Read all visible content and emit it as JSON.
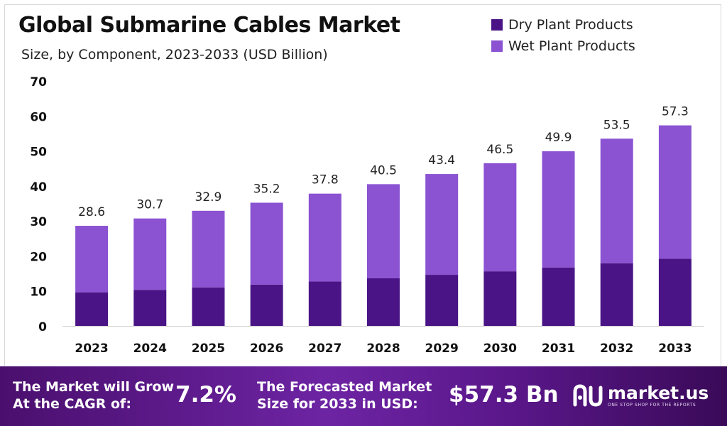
{
  "chart_data": {
    "type": "bar",
    "stacked": true,
    "title": "Global Submarine Cables Market",
    "subtitle": "Size, by Component, 2023-2033 (USD Billion)",
    "categories": [
      "2023",
      "2024",
      "2025",
      "2026",
      "2027",
      "2028",
      "2029",
      "2030",
      "2031",
      "2032",
      "2033"
    ],
    "series": [
      {
        "name": "Dry Plant Products",
        "color": "#4a1486",
        "values": [
          9.6,
          10.3,
          11.0,
          11.8,
          12.7,
          13.6,
          14.6,
          15.6,
          16.7,
          17.9,
          19.2
        ]
      },
      {
        "name": "Wet Plant Products",
        "color": "#8b52d2",
        "values": [
          19.0,
          20.4,
          21.9,
          23.4,
          25.1,
          26.9,
          28.8,
          30.9,
          33.2,
          35.6,
          38.1
        ]
      }
    ],
    "totals": [
      "28.6",
      "30.7",
      "32.9",
      "35.2",
      "37.8",
      "40.5",
      "43.4",
      "46.5",
      "49.9",
      "53.5",
      "57.3"
    ],
    "ylim": [
      0,
      70
    ],
    "yticks": [
      "0",
      "10",
      "20",
      "30",
      "40",
      "50",
      "60",
      "70"
    ],
    "legend_position": "top-right",
    "grid": false
  },
  "footer": {
    "cagr_label_line1": "The Market will Grow",
    "cagr_label_line2": "At the CAGR of:",
    "cagr_value": "7.2%",
    "forecast_label_line1": "The Forecasted Market",
    "forecast_label_line2": "Size for 2033 in USD:",
    "forecast_value": "$57.3 Bn"
  },
  "logo": {
    "name": "market.us",
    "tagline": "ONE STOP SHOP FOR THE REPORTS",
    "icon": "market-us-logo-icon"
  },
  "colors": {
    "dry": "#4a1486",
    "wet": "#8b52d2",
    "footer": "#5a178a"
  }
}
